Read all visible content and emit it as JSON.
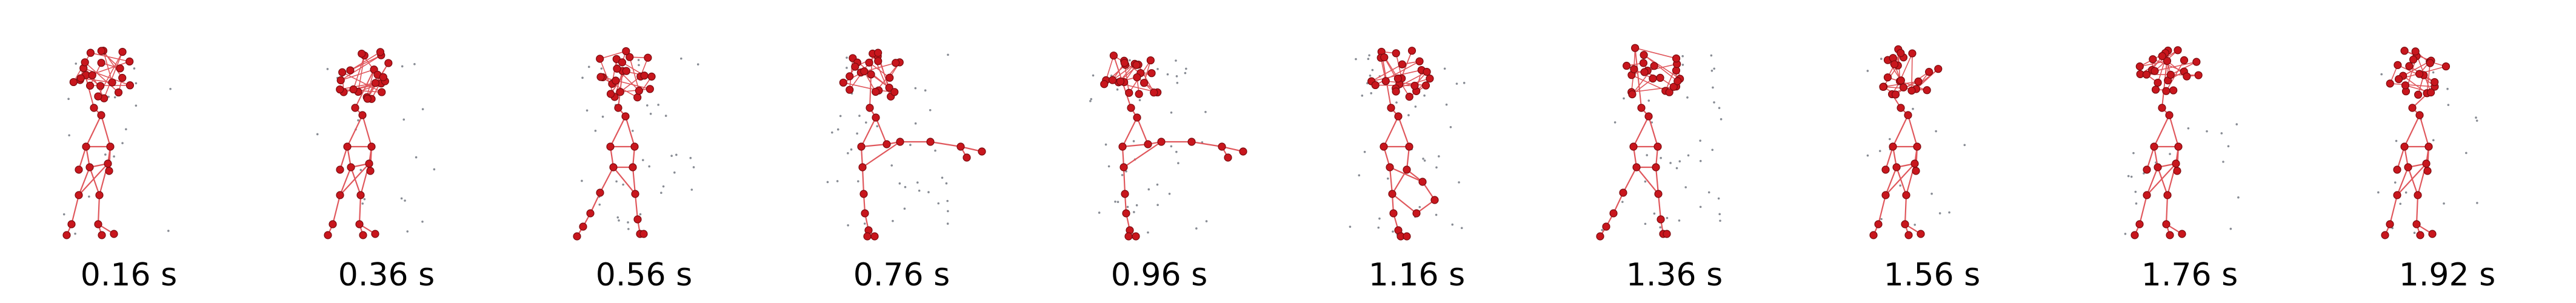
{
  "figure": {
    "frames": [
      {
        "time_label": "0.16 s",
        "pose": "standing"
      },
      {
        "time_label": "0.36 s",
        "pose": "standing"
      },
      {
        "time_label": "0.56 s",
        "pose": "stepping"
      },
      {
        "time_label": "0.76 s",
        "pose": "leg-extended"
      },
      {
        "time_label": "0.96 s",
        "pose": "leg-extended"
      },
      {
        "time_label": "1.16 s",
        "pose": "knee-raised"
      },
      {
        "time_label": "1.36 s",
        "pose": "stepping"
      },
      {
        "time_label": "1.56 s",
        "pose": "standing"
      },
      {
        "time_label": "1.76 s",
        "pose": "standing"
      },
      {
        "time_label": "1.92 s",
        "pose": "standing"
      }
    ],
    "colors": {
      "joint": "#c8161d",
      "joint_edge": "#7a0a0e",
      "bone": "#e0575c",
      "point_cloud": "#555b66",
      "label": "#000000"
    }
  }
}
